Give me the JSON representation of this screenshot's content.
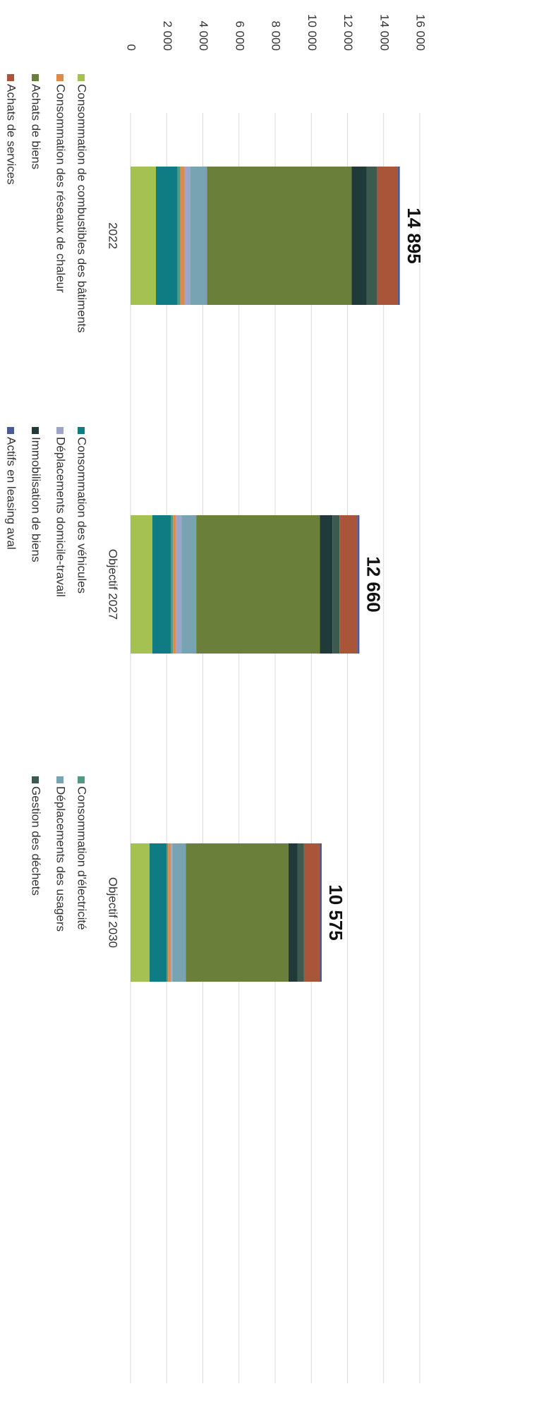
{
  "chart_data": {
    "type": "stacked_bar",
    "categories": [
      "2022",
      "Objectif 2027",
      "Objectif 2030"
    ],
    "series": [
      {
        "name": "Consommation de combustibles des bâtiments",
        "color": "#a4c152",
        "values": [
          1406,
          1210,
          1055
        ]
      },
      {
        "name": "Consommation des véhicules",
        "color": "#0f7b83",
        "values": [
          1200,
          1015,
          940
        ]
      },
      {
        "name": "Consommation d'électricité",
        "color": "#4f9a82",
        "values": [
          150,
          120,
          80
        ]
      },
      {
        "name": "Consommation des réseaux de chaleur",
        "color": "#e08a4a",
        "values": [
          230,
          160,
          160
        ]
      },
      {
        "name": "Déplacements domicile-travail",
        "color": "#9da6c8",
        "values": [
          300,
          310,
          80
        ]
      },
      {
        "name": "Déplacements des usagers",
        "color": "#77a3b3",
        "values": [
          940,
          820,
          740
        ]
      },
      {
        "name": "Achats de biens",
        "color": "#6a7f3a",
        "values": [
          8009,
          6835,
          5680
        ]
      },
      {
        "name": "Immobilisation de biens",
        "color": "#1f3a38",
        "values": [
          820,
          700,
          510
        ]
      },
      {
        "name": "Gestion des déchets",
        "color": "#3c5a50",
        "values": [
          590,
          390,
          350
        ]
      },
      {
        "name": "Achats de services",
        "color": "#a8553a",
        "values": [
          1130,
          980,
          860
        ]
      },
      {
        "name": "Actifs en leasing aval",
        "color": "#4a5a96",
        "values": [
          120,
          120,
          120
        ]
      }
    ],
    "totals": {
      "values": [
        14895,
        12660,
        10575
      ],
      "value_labels": [
        "14 895",
        "12 660",
        "10 575"
      ]
    },
    "ylim": [
      0,
      16000
    ],
    "yticks": [
      0,
      {
        "value": 2000,
        "label": "2 000"
      },
      {
        "value": 4000,
        "label": "4 000"
      },
      {
        "value": 6000,
        "label": "6 000"
      },
      {
        "value": 8000,
        "label": "8 000"
      },
      {
        "value": 10000,
        "label": "10 000"
      },
      {
        "value": 12000,
        "label": "12 000"
      },
      {
        "value": 14000,
        "label": "14 000"
      },
      {
        "value": 16000,
        "label": "16 000"
      }
    ],
    "grid": true
  }
}
